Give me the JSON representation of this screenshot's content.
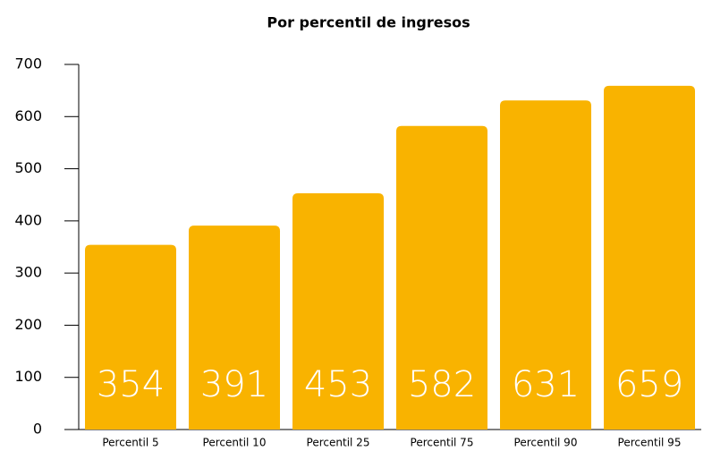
{
  "chart_data": {
    "type": "bar",
    "title": "Por percentil de ingresos",
    "categories": [
      "Percentil 5",
      "Percentil 10",
      "Percentil 25",
      "Percentil 75",
      "Percentil 90",
      "Percentil 95"
    ],
    "values": [
      354,
      391,
      453,
      582,
      631,
      659
    ],
    "color": "#f9b300",
    "ylim": [
      0,
      700
    ],
    "yticks": [
      0,
      100,
      200,
      300,
      400,
      500,
      600,
      700
    ],
    "grid": false
  }
}
